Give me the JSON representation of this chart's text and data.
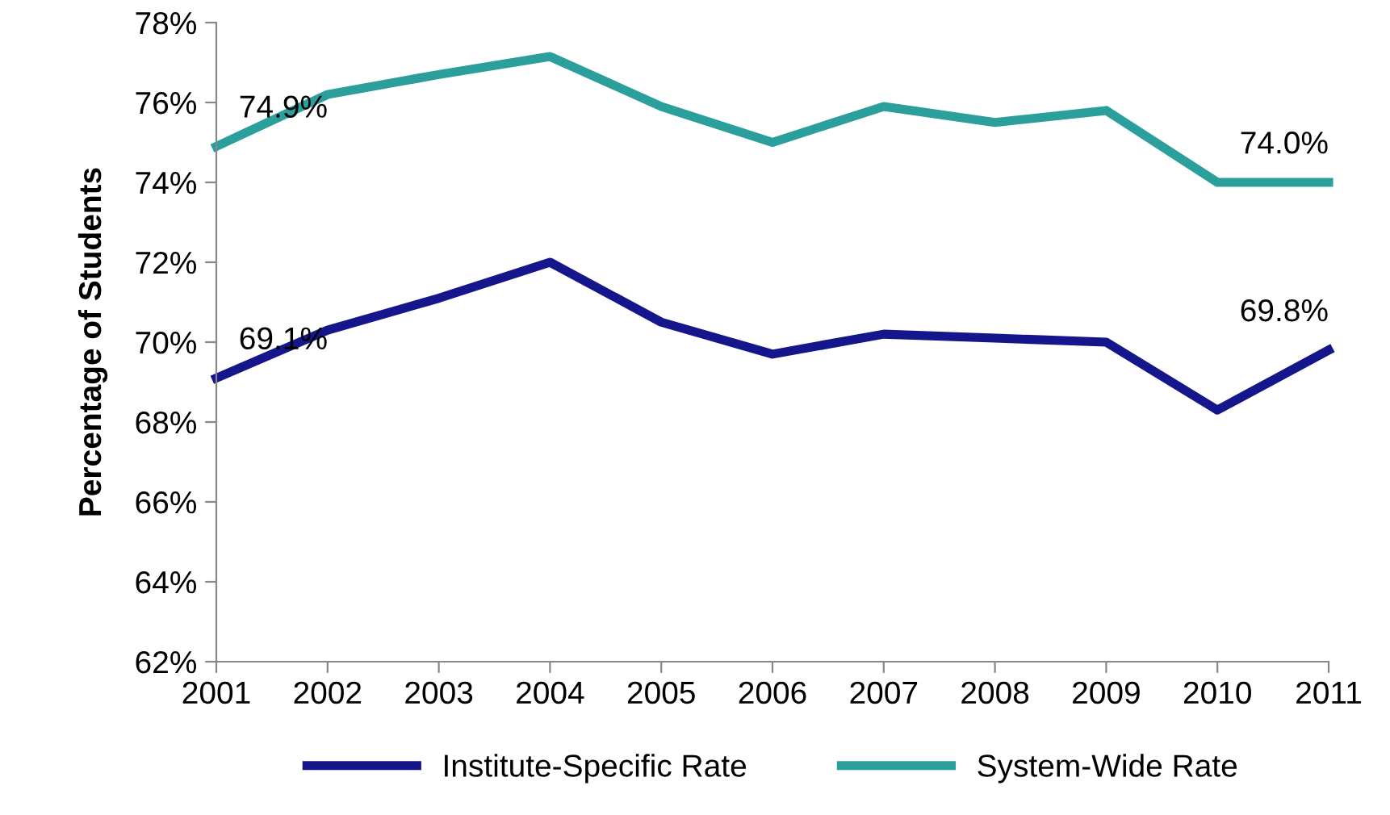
{
  "chart_data": {
    "type": "line",
    "ylabel": "Percentage of Students",
    "categories": [
      "2001",
      "2002",
      "2003",
      "2004",
      "2005",
      "2006",
      "2007",
      "2008",
      "2009",
      "2010",
      "2011"
    ],
    "series": [
      {
        "name": "Institute-Specific Rate",
        "color": "#15158c",
        "values": [
          69.1,
          70.3,
          71.1,
          72.0,
          70.5,
          69.7,
          70.2,
          70.1,
          70.0,
          68.3,
          69.8
        ],
        "value_labels": [
          "69.1%",
          null,
          null,
          null,
          null,
          null,
          null,
          null,
          null,
          null,
          "69.8%"
        ]
      },
      {
        "name": "System-Wide Rate",
        "color": "#2a9f9b",
        "values": [
          74.9,
          76.2,
          76.7,
          77.15,
          75.9,
          75.0,
          75.9,
          75.5,
          75.8,
          74.0,
          74.0
        ],
        "value_labels": [
          "74.9%",
          null,
          null,
          null,
          null,
          null,
          null,
          null,
          null,
          null,
          "74.0%"
        ]
      }
    ],
    "ylim": [
      62,
      78
    ],
    "yticks": [
      {
        "value": 62,
        "label": "62%"
      },
      {
        "value": 64,
        "label": "64%"
      },
      {
        "value": 66,
        "label": "66%"
      },
      {
        "value": 68,
        "label": "68%"
      },
      {
        "value": 70,
        "label": "70%"
      },
      {
        "value": 72,
        "label": "72%"
      },
      {
        "value": 74,
        "label": "74%"
      },
      {
        "value": 76,
        "label": "76%"
      },
      {
        "value": 78,
        "label": "78%"
      }
    ],
    "grid": false,
    "legend": "bottom",
    "marker": "none",
    "line_style": "solid"
  }
}
